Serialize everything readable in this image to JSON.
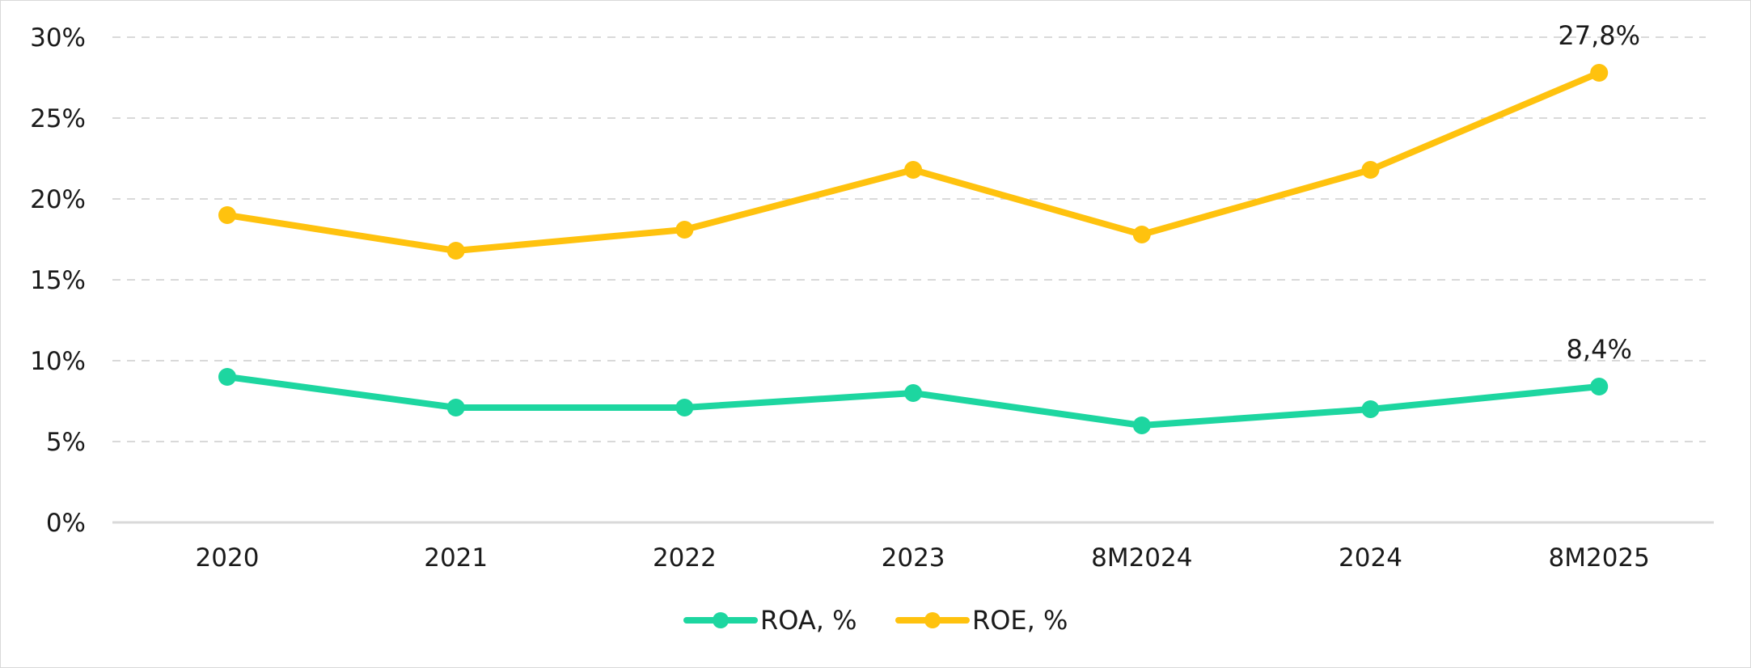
{
  "chart_data": {
    "type": "line",
    "categories": [
      "2020",
      "2021",
      "2022",
      "2023",
      "8M2024",
      "2024",
      "8M2025"
    ],
    "series": [
      {
        "name": "ROA, %",
        "color": "#1dd6a0",
        "values": [
          9.0,
          7.1,
          7.1,
          8.0,
          6.0,
          7.0,
          8.4
        ]
      },
      {
        "name": "ROE, %",
        "color": "#ffc20e",
        "values": [
          19.0,
          16.8,
          18.1,
          21.8,
          17.8,
          21.8,
          27.8
        ]
      }
    ],
    "data_labels": [
      {
        "series": 1,
        "index": 6,
        "text": "27,8%"
      },
      {
        "series": 0,
        "index": 6,
        "text": "8,4%"
      }
    ],
    "ylim": [
      0,
      30
    ],
    "yticks": [
      0,
      5,
      10,
      15,
      20,
      25,
      30
    ],
    "ytick_labels": [
      "0%",
      "5%",
      "10%",
      "15%",
      "20%",
      "25%",
      "30%"
    ],
    "grid": true,
    "legend": "bottom-center",
    "title": "",
    "xlabel": "",
    "ylabel": ""
  }
}
